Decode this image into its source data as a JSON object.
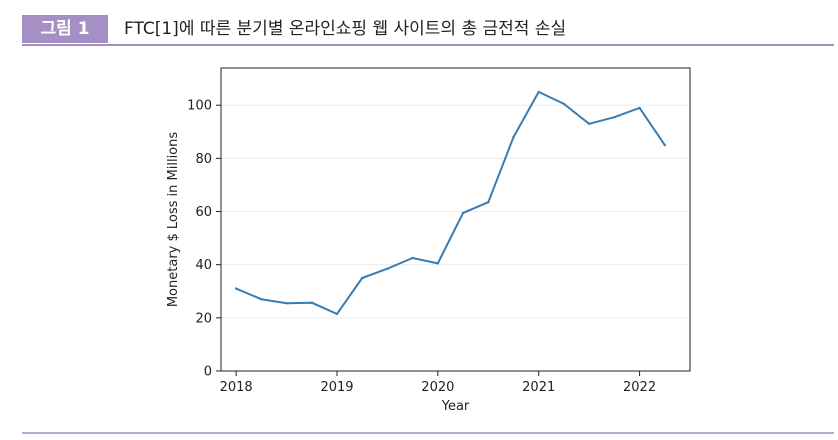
{
  "figure": {
    "badge": "그림 1",
    "title": "FTC[1]에 따른 분기별 온라인쇼핑 웹 사이트의 총 금전적 손실"
  },
  "colors": {
    "accent": "#a68fc4",
    "line": "#3a7cb0"
  },
  "chart_data": {
    "type": "line",
    "xlabel": "Year",
    "ylabel": "Monetary $ Loss in Millions",
    "xlim": [
      2017.85,
      2022.5
    ],
    "ylim": [
      0,
      114
    ],
    "xticks": [
      2018,
      2019,
      2020,
      2021,
      2022
    ],
    "yticks": [
      0,
      20,
      40,
      60,
      80,
      100
    ],
    "grid": true,
    "x": [
      2018.0,
      2018.25,
      2018.5,
      2018.75,
      2019.0,
      2019.25,
      2019.5,
      2019.75,
      2020.0,
      2020.25,
      2020.5,
      2020.75,
      2021.0,
      2021.25,
      2021.5,
      2021.75,
      2022.0,
      2022.25
    ],
    "y": [
      31,
      27,
      25.5,
      25.7,
      21.5,
      35,
      38.5,
      42.5,
      40.5,
      59.5,
      63.5,
      88,
      105,
      100.5,
      93,
      95.5,
      99,
      85
    ]
  }
}
